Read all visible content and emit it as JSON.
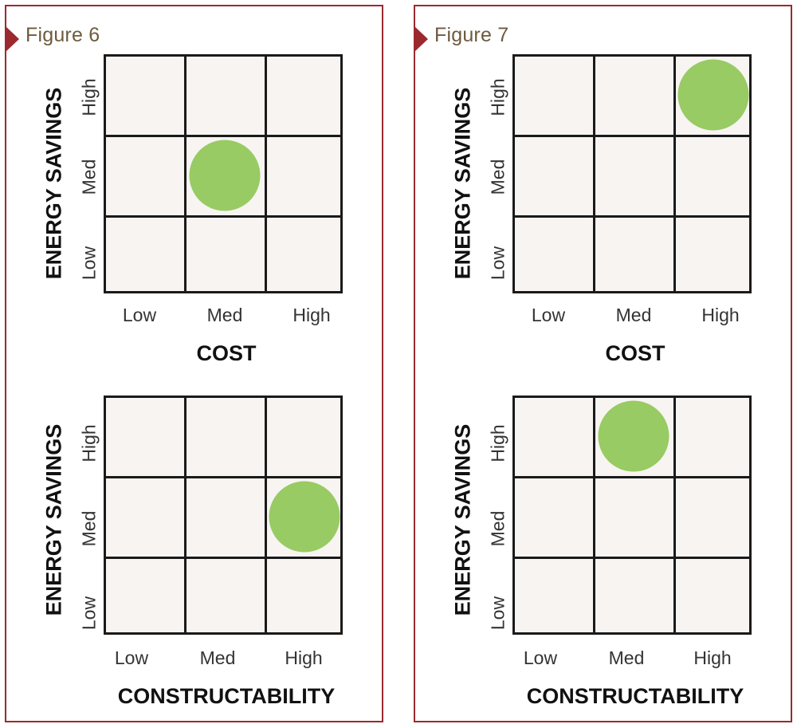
{
  "figures": [
    {
      "title": "Figure 6",
      "charts": [
        {
          "ylabel": "ENERGY SAVINGS",
          "xlabel": "COST",
          "y_levels": [
            "Low",
            "Med",
            "High"
          ],
          "x_levels": [
            "Low",
            "Med",
            "High"
          ],
          "marker": {
            "x": "Med",
            "y": "Med"
          }
        },
        {
          "ylabel": "ENERGY SAVINGS",
          "xlabel": "CONSTRUCTABILITY",
          "y_levels": [
            "Low",
            "Med",
            "High"
          ],
          "x_levels": [
            "Low",
            "Med",
            "High"
          ],
          "marker": {
            "x": "High",
            "y": "Med"
          }
        }
      ]
    },
    {
      "title": "Figure 7",
      "charts": [
        {
          "ylabel": "ENERGY SAVINGS",
          "xlabel": "COST",
          "y_levels": [
            "Low",
            "Med",
            "High"
          ],
          "x_levels": [
            "Low",
            "Med",
            "High"
          ],
          "marker": {
            "x": "High",
            "y": "High"
          }
        },
        {
          "ylabel": "ENERGY SAVINGS",
          "xlabel": "CONSTRUCTABILITY",
          "y_levels": [
            "Low",
            "Med",
            "High"
          ],
          "x_levels": [
            "Low",
            "Med",
            "High"
          ],
          "marker": {
            "x": "Med",
            "y": "High"
          }
        }
      ]
    }
  ],
  "colors": {
    "border": "#9b2a2f",
    "marker": "#98cb63",
    "cell": "#f7f4f2",
    "title": "#6d5b3e"
  }
}
